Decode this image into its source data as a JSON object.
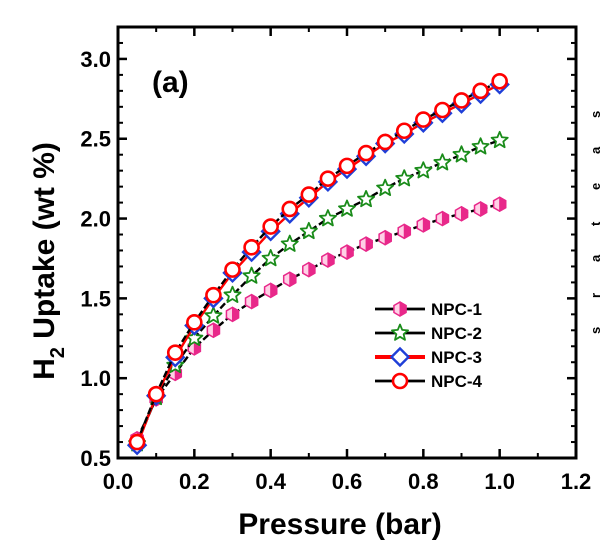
{
  "chart_data": {
    "type": "line",
    "panel_label": "(a)",
    "xlabel": "Pressure (bar)",
    "ylabel_prefix": "H",
    "ylabel_subscript": "2",
    "ylabel_suffix": " Uptake (wt %)",
    "xlim": [
      0.0,
      1.2
    ],
    "ylim": [
      0.5,
      3.2
    ],
    "xticks": [
      0.0,
      0.2,
      0.4,
      0.6,
      0.8,
      1.0,
      1.2
    ],
    "xtick_labels": [
      "0.0",
      "0.2",
      "0.4",
      "0.6",
      "0.8",
      "1.0",
      "1.2"
    ],
    "yticks": [
      0.5,
      1.0,
      1.5,
      2.0,
      2.5,
      3.0
    ],
    "ytick_labels": [
      "0.5",
      "1.0",
      "1.5",
      "2.0",
      "2.5",
      "3.0"
    ],
    "grid": false,
    "legend_position": "lower-right",
    "x": [
      0.05,
      0.1,
      0.15,
      0.2,
      0.25,
      0.3,
      0.35,
      0.4,
      0.45,
      0.5,
      0.55,
      0.6,
      0.65,
      0.7,
      0.75,
      0.8,
      0.85,
      0.9,
      0.95,
      1.0
    ],
    "series": [
      {
        "name": "NPC-1",
        "marker": "hexagon",
        "color": "#e8288a",
        "line_color": "#000000",
        "values": [
          0.62,
          0.87,
          1.03,
          1.19,
          1.3,
          1.4,
          1.48,
          1.55,
          1.62,
          1.68,
          1.74,
          1.79,
          1.84,
          1.88,
          1.92,
          1.96,
          2.0,
          2.03,
          2.06,
          2.09
        ]
      },
      {
        "name": "NPC-2",
        "marker": "star",
        "color": "#1a8c1a",
        "line_color": "#000000",
        "values": [
          0.59,
          0.88,
          1.08,
          1.25,
          1.39,
          1.52,
          1.64,
          1.75,
          1.84,
          1.92,
          2.0,
          2.06,
          2.12,
          2.19,
          2.25,
          2.3,
          2.35,
          2.4,
          2.45,
          2.49
        ]
      },
      {
        "name": "NPC-3",
        "marker": "diamond",
        "color": "#1f3fd8",
        "line_color": "#ff0000",
        "values": [
          0.58,
          0.89,
          1.13,
          1.33,
          1.5,
          1.66,
          1.79,
          1.92,
          2.03,
          2.13,
          2.23,
          2.31,
          2.39,
          2.47,
          2.53,
          2.6,
          2.66,
          2.72,
          2.78,
          2.84
        ]
      },
      {
        "name": "NPC-4",
        "marker": "circle",
        "color": "#ff0000",
        "line_color": "#000000",
        "values": [
          0.6,
          0.9,
          1.16,
          1.35,
          1.52,
          1.68,
          1.82,
          1.95,
          2.06,
          2.15,
          2.25,
          2.33,
          2.41,
          2.48,
          2.55,
          2.62,
          2.68,
          2.74,
          2.8,
          2.86
        ]
      }
    ],
    "right_edge_glyphs": [
      "s",
      "a",
      "e",
      "t",
      "a",
      "r",
      "s"
    ]
  }
}
